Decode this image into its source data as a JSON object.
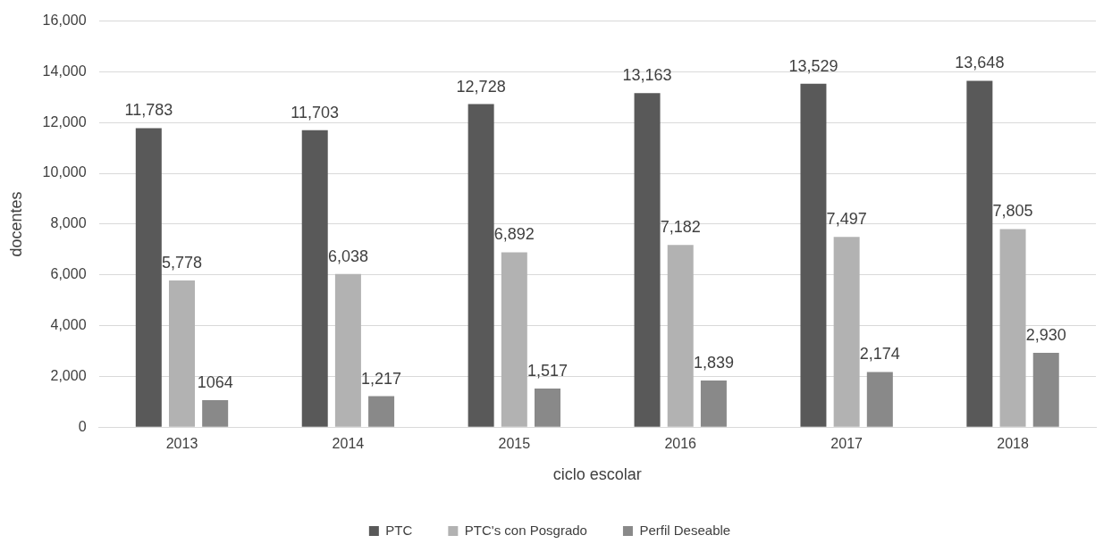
{
  "chart_data": {
    "type": "bar",
    "xlabel": "ciclo escolar",
    "ylabel": "docentes",
    "categories": [
      "2013",
      "2014",
      "2015",
      "2016",
      "2017",
      "2018"
    ],
    "series": [
      {
        "name": "PTC",
        "color": "#595959",
        "values": [
          11783,
          11703,
          12728,
          13163,
          13529,
          13648
        ],
        "value_labels": [
          "11,783",
          "11,703",
          "12,728",
          "13,163",
          "13,529",
          "13,648"
        ]
      },
      {
        "name": "PTC's con Posgrado",
        "color": "#b2b2b2",
        "values": [
          5778,
          6038,
          6892,
          7182,
          7497,
          7805
        ],
        "value_labels": [
          "5,778",
          "6,038",
          "6,892",
          "7,182",
          "7,497",
          "7,805"
        ]
      },
      {
        "name": "Perfil Deseable",
        "color": "#898989",
        "values": [
          1064,
          1217,
          1517,
          1839,
          2174,
          2930
        ],
        "value_labels": [
          "1064",
          "1,217",
          "1,517",
          "1,839",
          "2,174",
          "2,930"
        ]
      }
    ],
    "ylim": [
      0,
      16000
    ],
    "yticks": [
      {
        "value": 0,
        "label": "0"
      },
      {
        "value": 2000,
        "label": "2,000"
      },
      {
        "value": 4000,
        "label": "4,000"
      },
      {
        "value": 6000,
        "label": "6,000"
      },
      {
        "value": 8000,
        "label": "8,000"
      },
      {
        "value": 10000,
        "label": "10,000"
      },
      {
        "value": 12000,
        "label": "12,000"
      },
      {
        "value": 14000,
        "label": "14,000"
      },
      {
        "value": 16000,
        "label": "16,000"
      }
    ],
    "grid": "y",
    "legend": "bottom"
  }
}
